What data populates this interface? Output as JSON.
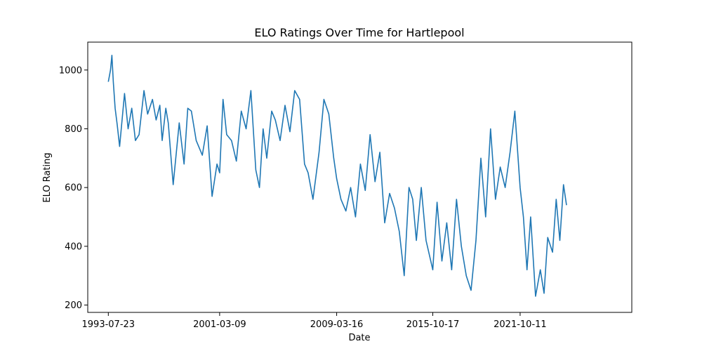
{
  "chart_data": {
    "type": "line",
    "title": "ELO Ratings Over Time for Hartlepool",
    "xlabel": "Date",
    "ylabel": "ELO Rating",
    "x_tick_labels": [
      "1993-07-23",
      "2001-03-09",
      "2009-03-16",
      "2015-10-17",
      "2021-10-11"
    ],
    "y_ticks": [
      200,
      400,
      600,
      800,
      1000
    ],
    "ylim": [
      175,
      1095
    ],
    "xlim": [
      "1992-02-24",
      "2029-06-06"
    ],
    "grid": false,
    "series": [
      {
        "color": "#1f77b4",
        "points": [
          [
            "1993-07-23",
            960
          ],
          [
            "1993-09-15",
            1000
          ],
          [
            "1993-10-20",
            1050
          ],
          [
            "1993-11-25",
            960
          ],
          [
            "1994-01-10",
            870
          ],
          [
            "1994-03-01",
            815
          ],
          [
            "1994-05-01",
            740
          ],
          [
            "1994-09-01",
            920
          ],
          [
            "1994-12-01",
            800
          ],
          [
            "1995-03-01",
            870
          ],
          [
            "1995-06-01",
            760
          ],
          [
            "1995-09-01",
            780
          ],
          [
            "1996-01-01",
            930
          ],
          [
            "1996-04-01",
            850
          ],
          [
            "1996-08-01",
            900
          ],
          [
            "1996-11-01",
            830
          ],
          [
            "1997-02-01",
            880
          ],
          [
            "1997-04-01",
            760
          ],
          [
            "1997-07-01",
            870
          ],
          [
            "1997-09-01",
            820
          ],
          [
            "1998-01-01",
            610
          ],
          [
            "1998-06-01",
            820
          ],
          [
            "1998-10-01",
            680
          ],
          [
            "1999-01-01",
            870
          ],
          [
            "1999-04-01",
            860
          ],
          [
            "1999-08-01",
            760
          ],
          [
            "2000-01-01",
            710
          ],
          [
            "2000-05-01",
            810
          ],
          [
            "2000-09-01",
            570
          ],
          [
            "2001-01-01",
            680
          ],
          [
            "2001-03-09",
            650
          ],
          [
            "2001-06-01",
            900
          ],
          [
            "2001-09-01",
            780
          ],
          [
            "2002-01-01",
            760
          ],
          [
            "2002-05-01",
            690
          ],
          [
            "2002-09-01",
            860
          ],
          [
            "2003-01-01",
            800
          ],
          [
            "2003-05-01",
            930
          ],
          [
            "2003-09-01",
            660
          ],
          [
            "2003-12-01",
            600
          ],
          [
            "2004-03-01",
            800
          ],
          [
            "2004-06-01",
            700
          ],
          [
            "2004-10-01",
            860
          ],
          [
            "2005-01-01",
            830
          ],
          [
            "2005-05-01",
            760
          ],
          [
            "2005-09-01",
            880
          ],
          [
            "2006-01-01",
            790
          ],
          [
            "2006-05-01",
            930
          ],
          [
            "2006-09-01",
            900
          ],
          [
            "2007-01-01",
            680
          ],
          [
            "2007-04-01",
            650
          ],
          [
            "2007-08-01",
            560
          ],
          [
            "2008-01-01",
            720
          ],
          [
            "2008-05-01",
            900
          ],
          [
            "2008-09-01",
            850
          ],
          [
            "2009-01-01",
            700
          ],
          [
            "2009-03-16",
            630
          ],
          [
            "2009-07-01",
            560
          ],
          [
            "2009-11-01",
            520
          ],
          [
            "2010-03-01",
            600
          ],
          [
            "2010-07-01",
            500
          ],
          [
            "2010-11-01",
            680
          ],
          [
            "2011-03-01",
            590
          ],
          [
            "2011-07-01",
            780
          ],
          [
            "2011-11-01",
            620
          ],
          [
            "2012-03-01",
            720
          ],
          [
            "2012-07-01",
            480
          ],
          [
            "2012-11-01",
            580
          ],
          [
            "2013-03-01",
            530
          ],
          [
            "2013-07-01",
            450
          ],
          [
            "2013-11-01",
            300
          ],
          [
            "2014-03-01",
            600
          ],
          [
            "2014-06-01",
            560
          ],
          [
            "2014-09-01",
            420
          ],
          [
            "2015-01-01",
            600
          ],
          [
            "2015-05-01",
            420
          ],
          [
            "2015-10-17",
            320
          ],
          [
            "2016-02-01",
            550
          ],
          [
            "2016-06-01",
            350
          ],
          [
            "2016-10-01",
            480
          ],
          [
            "2017-02-01",
            320
          ],
          [
            "2017-06-01",
            560
          ],
          [
            "2017-10-01",
            400
          ],
          [
            "2018-02-01",
            300
          ],
          [
            "2018-06-01",
            250
          ],
          [
            "2018-10-01",
            420
          ],
          [
            "2019-02-01",
            700
          ],
          [
            "2019-06-01",
            500
          ],
          [
            "2019-10-01",
            800
          ],
          [
            "2020-02-01",
            560
          ],
          [
            "2020-06-01",
            670
          ],
          [
            "2020-10-01",
            600
          ],
          [
            "2021-02-01",
            720
          ],
          [
            "2021-06-01",
            860
          ],
          [
            "2021-10-11",
            600
          ],
          [
            "2022-01-01",
            500
          ],
          [
            "2022-04-01",
            320
          ],
          [
            "2022-07-01",
            500
          ],
          [
            "2022-11-01",
            230
          ],
          [
            "2023-03-01",
            320
          ],
          [
            "2023-06-01",
            240
          ],
          [
            "2023-09-01",
            430
          ],
          [
            "2024-01-01",
            380
          ],
          [
            "2024-04-01",
            560
          ],
          [
            "2024-07-01",
            420
          ],
          [
            "2024-10-01",
            610
          ],
          [
            "2024-12-15",
            540
          ]
        ]
      }
    ]
  }
}
